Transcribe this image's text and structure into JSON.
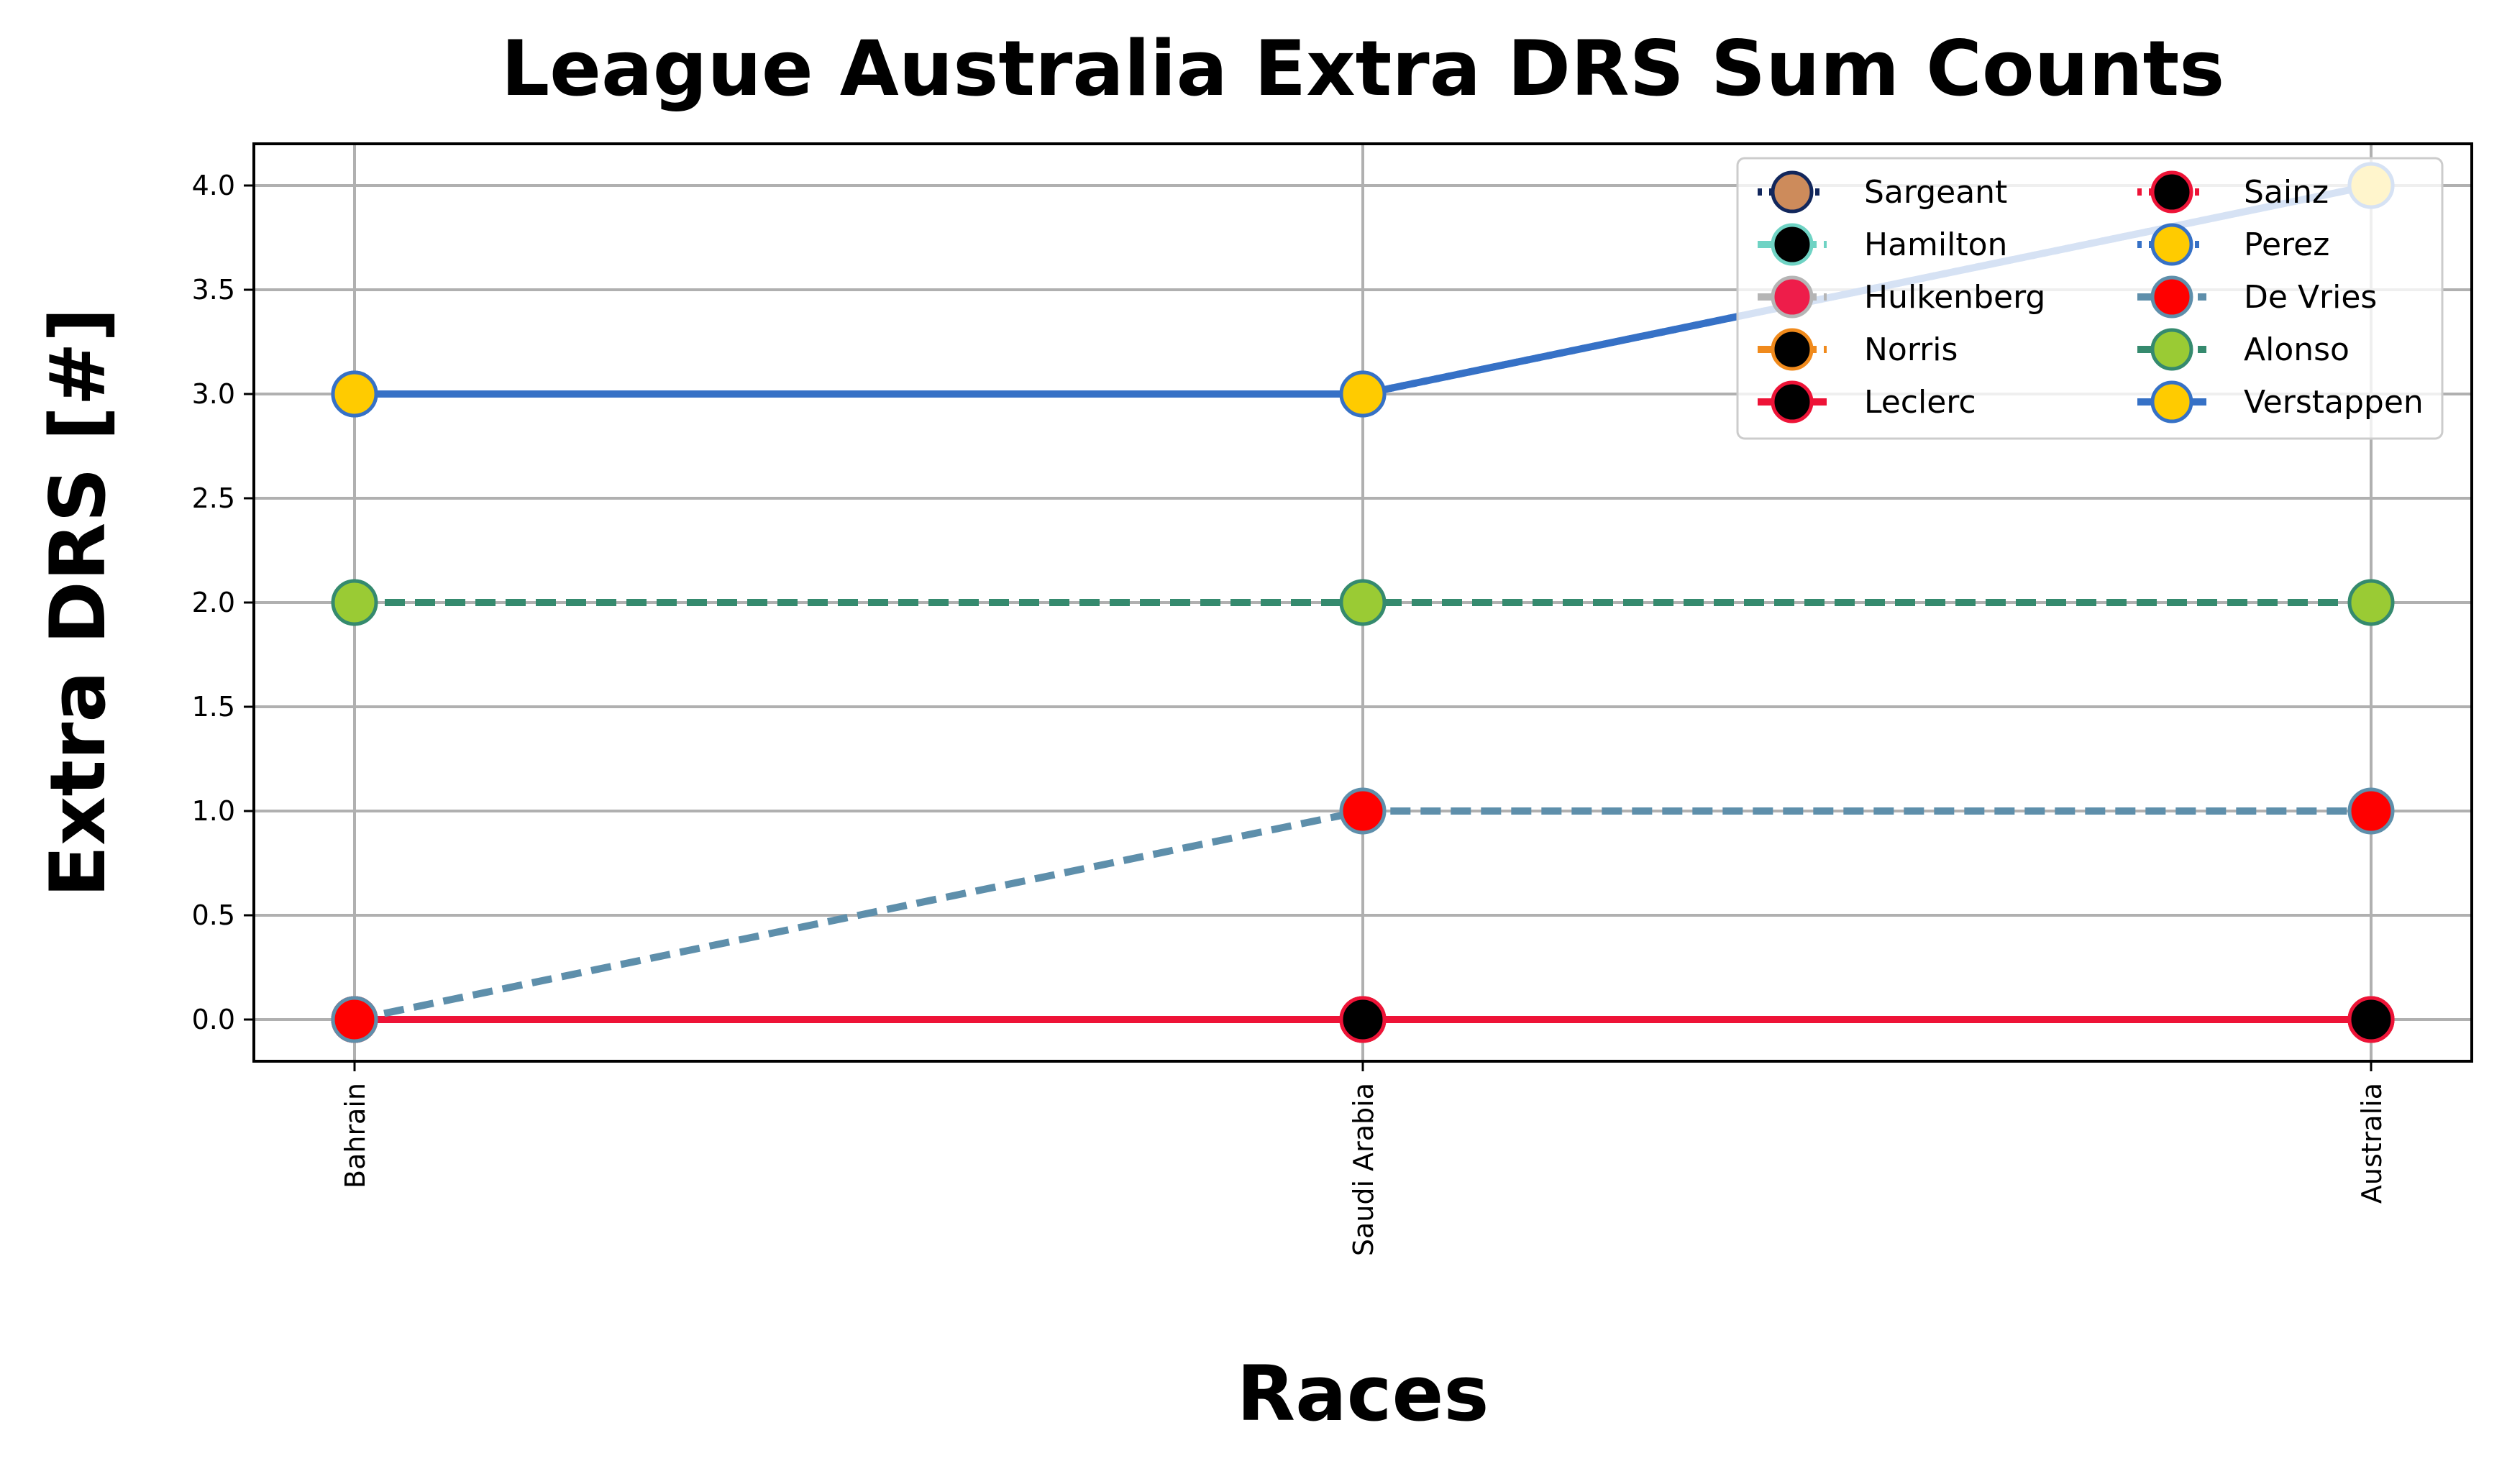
{
  "chart_data": {
    "type": "line",
    "title": "League Australia Extra DRS Sum Counts",
    "xlabel": "Races",
    "ylabel": "Extra DRS [#]",
    "categories": [
      "Bahrain",
      "Saudi Arabia",
      "Australia"
    ],
    "ylim": [
      -0.2,
      4.2
    ],
    "yticks": [
      "0.0",
      "0.5",
      "1.0",
      "1.5",
      "2.0",
      "2.5",
      "3.0",
      "3.5",
      "4.0"
    ],
    "grid": true,
    "legend": {
      "placement": "top-right",
      "columns": 2
    },
    "series": [
      {
        "name": "Sargeant",
        "values": [
          0,
          0,
          0
        ],
        "line_color": "#12275c",
        "marker_face": "#cd8b5b",
        "marker_edge": "#12275c",
        "dash": "dotted"
      },
      {
        "name": "Hamilton",
        "values": [
          0,
          0,
          0
        ],
        "line_color": "#6fd3c4",
        "marker_face": "#000000",
        "marker_edge": "#6fd3c4",
        "dash": "dashdot"
      },
      {
        "name": "Hulkenberg",
        "values": [
          0,
          0,
          0
        ],
        "line_color": "#b5b5b5",
        "marker_face": "#ee1d4a",
        "marker_edge": "#b5b5b5",
        "dash": "dashdot"
      },
      {
        "name": "Norris",
        "values": [
          0,
          0,
          0
        ],
        "line_color": "#f08a1c",
        "marker_face": "#000000",
        "marker_edge": "#f08a1c",
        "dash": "dashdot"
      },
      {
        "name": "Leclerc",
        "values": [
          0,
          0,
          0
        ],
        "line_color": "#ee1337",
        "marker_face": "#000000",
        "marker_edge": "#ee1337",
        "dash": "solid"
      },
      {
        "name": "Sainz",
        "values": [
          0,
          0,
          0
        ],
        "line_color": "#ee1337",
        "marker_face": "#000000",
        "marker_edge": "#ee1337",
        "dash": "dotted"
      },
      {
        "name": "Perez",
        "values": [
          3,
          3,
          4
        ],
        "line_color": "#3671c6",
        "marker_face": "#ffcb00",
        "marker_edge": "#3671c6",
        "dash": "dotted"
      },
      {
        "name": "De Vries",
        "values": [
          0,
          1,
          1
        ],
        "line_color": "#5e8fab",
        "marker_face": "#ff0000",
        "marker_edge": "#5e8fab",
        "dash": "dashed"
      },
      {
        "name": "Alonso",
        "values": [
          2,
          2,
          2
        ],
        "line_color": "#358a6e",
        "marker_face": "#9acb34",
        "marker_edge": "#358a6e",
        "dash": "dashed"
      },
      {
        "name": "Verstappen",
        "values": [
          3,
          3,
          4
        ],
        "line_color": "#3671c6",
        "marker_face": "#ffcb00",
        "marker_edge": "#3671c6",
        "dash": "solid"
      }
    ]
  }
}
